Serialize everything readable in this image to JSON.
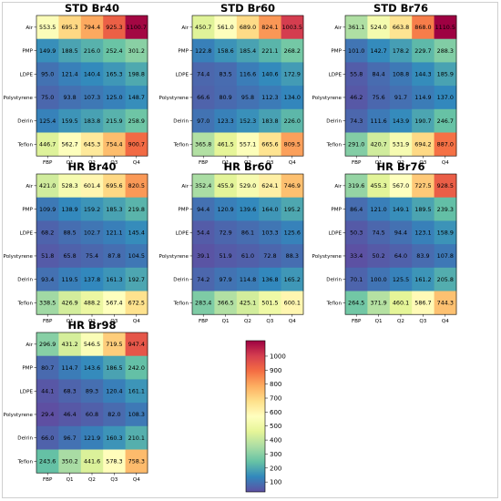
{
  "chart_data": [
    {
      "type": "heatmap",
      "title": "STD Br40",
      "x_categories": [
        "FBP",
        "Q1",
        "Q2",
        "Q3",
        "Q4"
      ],
      "y_categories": [
        "Air",
        "PMP",
        "LDPE",
        "Polystyrene",
        "Delrin",
        "Teflon"
      ],
      "values": [
        [
          "553.5",
          "695.3",
          "794.4",
          "925.3",
          "1100.7"
        ],
        [
          "149.9",
          "188.5",
          "216.0",
          "252.4",
          "301.2"
        ],
        [
          "95.0",
          "121.4",
          "140.4",
          "165.3",
          "198.8"
        ],
        [
          "75.0",
          "93.8",
          "107.3",
          "125.0",
          "148.7"
        ],
        [
          "125.4",
          "159.5",
          "183.8",
          "215.9",
          "258.9"
        ],
        [
          "446.7",
          "562.7",
          "645.3",
          "754.4",
          "900.7"
        ]
      ]
    },
    {
      "type": "heatmap",
      "title": "STD Br60",
      "x_categories": [
        "FBP",
        "Q1",
        "Q2",
        "Q3",
        "Q4"
      ],
      "y_categories": [
        "Air",
        "PMP",
        "LDPE",
        "Polystyrene",
        "Delrin",
        "Teflon"
      ],
      "values": [
        [
          "450.7",
          "561.0",
          "689.0",
          "824.1",
          "1003.5"
        ],
        [
          "122.8",
          "158.6",
          "185.4",
          "221.1",
          "268.2"
        ],
        [
          "74.4",
          "83.5",
          "116.6",
          "140.6",
          "172.9"
        ],
        [
          "66.6",
          "80.9",
          "95.8",
          "112.3",
          "134.0"
        ],
        [
          "97.0",
          "123.3",
          "152.3",
          "183.8",
          "226.0"
        ],
        [
          "365.8",
          "461.5",
          "557.1",
          "665.6",
          "809.5"
        ]
      ]
    },
    {
      "type": "heatmap",
      "title": "STD Br76",
      "x_categories": [
        "FBP",
        "Q1",
        "Q2",
        "Q3",
        "Q4"
      ],
      "y_categories": [
        "Air",
        "PMP",
        "LDPE",
        "Polystyrene",
        "Delrin",
        "Teflon"
      ],
      "values": [
        [
          "361.1",
          "524.0",
          "663.8",
          "868.0",
          "1110.5"
        ],
        [
          "101.0",
          "142.7",
          "178.2",
          "229.7",
          "288.3"
        ],
        [
          "55.8",
          "84.4",
          "108.8",
          "144.3",
          "185.9"
        ],
        [
          "46.2",
          "75.6",
          "91.7",
          "114.9",
          "137.0"
        ],
        [
          "74.3",
          "111.6",
          "143.9",
          "190.7",
          "246.7"
        ],
        [
          "291.0",
          "420.7",
          "531.9",
          "694.2",
          "887.0"
        ]
      ]
    },
    {
      "type": "heatmap",
      "title": "HR Br40",
      "x_categories": [
        "FBP",
        "Q1",
        "Q2",
        "Q3",
        "Q4"
      ],
      "y_categories": [
        "Air",
        "PMP",
        "LDPE",
        "Polystyrene",
        "Delrin",
        "Teflon"
      ],
      "values": [
        [
          "421.0",
          "528.3",
          "601.4",
          "695.6",
          "820.5"
        ],
        [
          "109.9",
          "138.9",
          "159.2",
          "185.3",
          "219.8"
        ],
        [
          "68.2",
          "88.5",
          "102.7",
          "121.1",
          "145.4"
        ],
        [
          "51.8",
          "65.8",
          "75.4",
          "87.8",
          "104.5"
        ],
        [
          "93.4",
          "119.5",
          "137.8",
          "161.3",
          "192.7"
        ],
        [
          "338.5",
          "426.9",
          "488.2",
          "567.4",
          "672.5"
        ]
      ]
    },
    {
      "type": "heatmap",
      "title": "HR Br60",
      "x_categories": [
        "FBP",
        "Q1",
        "Q2",
        "Q3",
        "Q4"
      ],
      "y_categories": [
        "Air",
        "PMP",
        "LDPE",
        "Polystyrene",
        "Delrin",
        "Teflon"
      ],
      "values": [
        [
          "352.4",
          "455.9",
          "529.0",
          "624.1",
          "746.9"
        ],
        [
          "94.4",
          "120.9",
          "139.6",
          "164.0",
          "195.2"
        ],
        [
          "54.4",
          "72.9",
          "86.1",
          "103.3",
          "125.6"
        ],
        [
          "39.1",
          "51.9",
          "61.0",
          "72.8",
          "88.3"
        ],
        [
          "74.2",
          "97.9",
          "114.8",
          "136.8",
          "165.2"
        ],
        [
          "283.4",
          "366.5",
          "425.1",
          "501.5",
          "600.1"
        ]
      ]
    },
    {
      "type": "heatmap",
      "title": "HR Br76",
      "x_categories": [
        "FBP",
        "Q1",
        "Q2",
        "Q3",
        "Q4"
      ],
      "y_categories": [
        "Air",
        "PMP",
        "LDPE",
        "Polystyrene",
        "Delrin",
        "Teflon"
      ],
      "values": [
        [
          "319.6",
          "455.3",
          "567.0",
          "727.5",
          "928.5"
        ],
        [
          "86.4",
          "121.0",
          "149.1",
          "189.5",
          "239.3"
        ],
        [
          "50.3",
          "74.5",
          "94.4",
          "123.1",
          "158.9"
        ],
        [
          "33.4",
          "50.2",
          "64.0",
          "83.9",
          "107.8"
        ],
        [
          "70.1",
          "100.0",
          "125.5",
          "161.2",
          "205.8"
        ],
        [
          "264.5",
          "371.9",
          "460.1",
          "586.7",
          "744.3"
        ]
      ]
    },
    {
      "type": "heatmap",
      "title": "HR Br98",
      "x_categories": [
        "FBP",
        "Q1",
        "Q2",
        "Q3",
        "Q4"
      ],
      "y_categories": [
        "Air",
        "PMP",
        "LDPE",
        "Polystyrene",
        "Delrin",
        "Teflon"
      ],
      "values": [
        [
          "296.9",
          "431.2",
          "546.5",
          "719.5",
          "947.4"
        ],
        [
          "80.7",
          "114.7",
          "143.6",
          "186.5",
          "242.0"
        ],
        [
          "44.1",
          "68.3",
          "89.3",
          "120.4",
          "161.1"
        ],
        [
          "29.4",
          "46.4",
          "60.8",
          "82.0",
          "108.3"
        ],
        [
          "66.0",
          "96.7",
          "121.9",
          "160.3",
          "210.1"
        ],
        [
          "243.6",
          "350.2",
          "441.6",
          "578.3",
          "758.3"
        ]
      ]
    }
  ],
  "colorbar": {
    "ticks": [
      "100",
      "200",
      "300",
      "400",
      "500",
      "600",
      "700",
      "800",
      "900",
      "1000"
    ],
    "min": 29.4,
    "max": 1110.5,
    "colormap": "Spectral_r"
  }
}
